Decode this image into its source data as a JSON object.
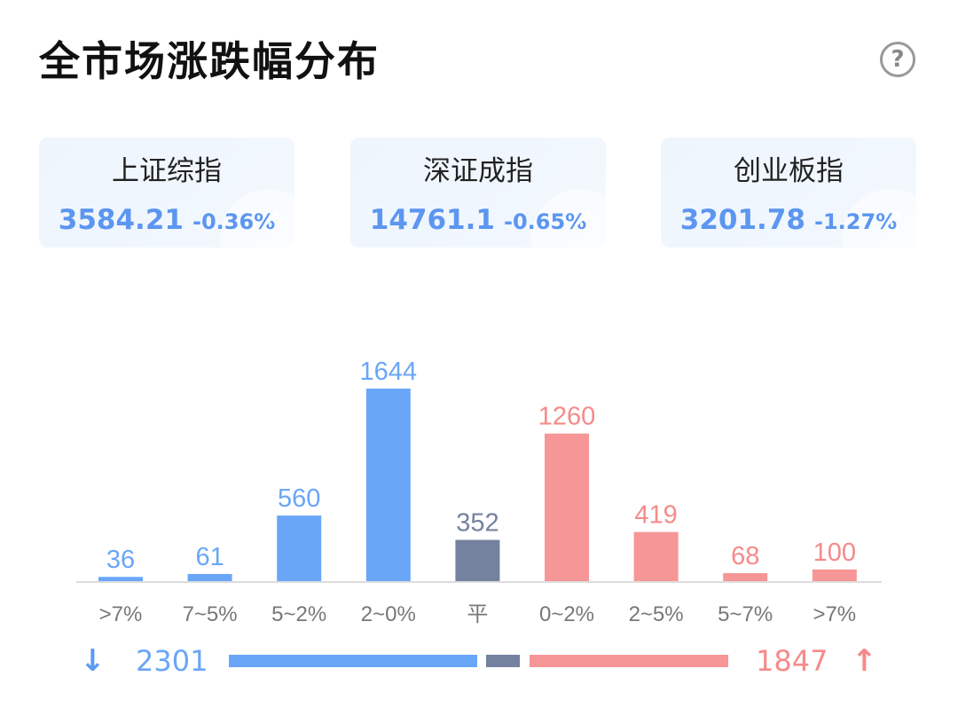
{
  "header": {
    "title": "全市场涨跌幅分布",
    "help_label": "?"
  },
  "indices": [
    {
      "name": "上证综指",
      "value": "3584.21",
      "change": "-0.36%"
    },
    {
      "name": "深证成指",
      "value": "14761.1",
      "change": "-0.65%"
    },
    {
      "name": "创业板指",
      "value": "3201.78",
      "change": "-1.27%"
    }
  ],
  "icons": {
    "card_trend": "trend-arrow-icon",
    "help": "question-mark-icon",
    "down": "down-arrow-icon",
    "up": "up-arrow-icon"
  },
  "colors": {
    "down": "#6aa6f8",
    "flat": "#74829f",
    "up": "#f69696",
    "axis": "#dddddd",
    "tick_text": "#777777"
  },
  "chart_data": {
    "type": "bar",
    "categories": [
      ">7%",
      "7~5%",
      "5~2%",
      "2~0%",
      "平",
      "0~2%",
      "2~5%",
      "5~7%",
      ">7%"
    ],
    "values": [
      36,
      61,
      560,
      1644,
      352,
      1260,
      419,
      68,
      100
    ],
    "groups": [
      "down",
      "down",
      "down",
      "down",
      "flat",
      "up",
      "up",
      "up",
      "up"
    ],
    "ylim": [
      0,
      1644
    ],
    "grid": false
  },
  "summary": {
    "down_total": "2301",
    "up_total": "1847",
    "down_arrow": "↓",
    "up_arrow": "↑",
    "down_count": 2301,
    "flat_count": 352,
    "up_count": 1847
  }
}
